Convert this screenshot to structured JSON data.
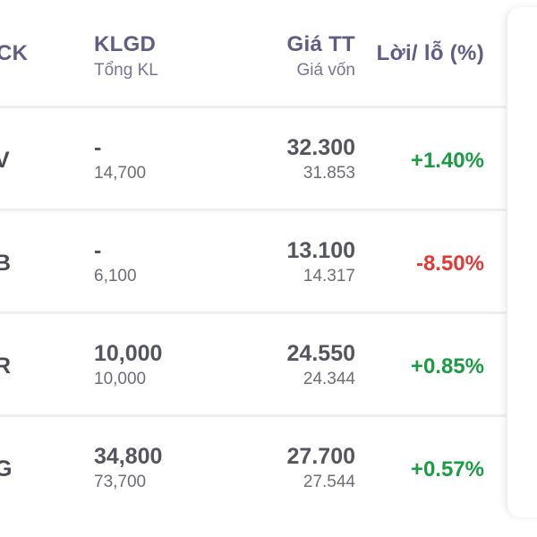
{
  "header": {
    "ticker_label": "CK",
    "volume_label": "KLGD",
    "volume_sub_label": "Tổng KL",
    "price_label": "Giá TT",
    "price_sub_label": "Giá vốn",
    "pnl_label": "Lời/ lỗ (%)"
  },
  "rows": [
    {
      "ticker": "V",
      "volume": "-",
      "total_volume": "14,700",
      "price": "32.300",
      "cost": "31.853",
      "pnl": "+1.40%",
      "pnl_color": "#1a9b44"
    },
    {
      "ticker": "B",
      "volume": "-",
      "total_volume": "6,100",
      "price": "13.100",
      "cost": "14.317",
      "pnl": "-8.50%",
      "pnl_color": "#e03a36"
    },
    {
      "ticker": "R",
      "volume": "10,000",
      "total_volume": "10,000",
      "price": "24.550",
      "cost": "24.344",
      "pnl": "+0.85%",
      "pnl_color": "#1a9b44"
    },
    {
      "ticker": "G",
      "volume": "34,800",
      "total_volume": "73,700",
      "price": "27.700",
      "cost": "27.544",
      "pnl": "+0.57%",
      "pnl_color": "#1a9b44"
    }
  ],
  "colors": {
    "positive": "#1a9b44",
    "negative": "#e03a36",
    "header_text": "#5f5d86",
    "divider": "#eeeef1"
  }
}
